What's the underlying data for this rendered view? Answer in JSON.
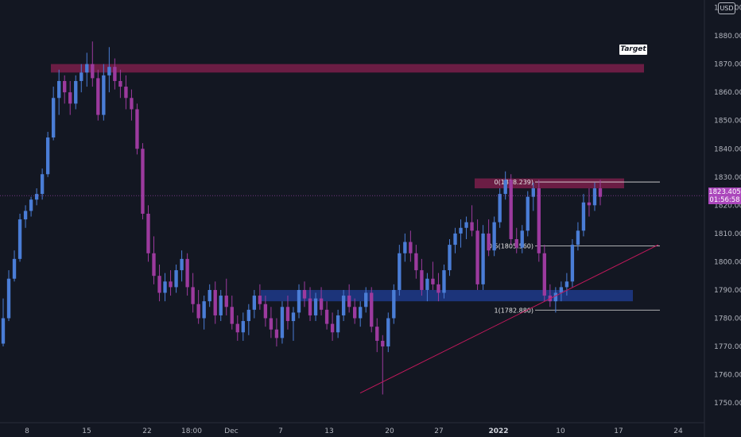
{
  "currency": "USD",
  "last_price": "1823.405",
  "countdown": "01:56:58",
  "target_label": "Target",
  "fib": [
    {
      "ratio": "0",
      "price": "1828.239",
      "label": "0(1828.239)"
    },
    {
      "ratio": "0.5",
      "price": "1805.560",
      "label": "0.5(1805.560)"
    },
    {
      "ratio": "1",
      "price": "1782.880",
      "label": "1(1782.880)"
    }
  ],
  "chart_data": {
    "type": "candlestick",
    "title": "",
    "xlabel": "",
    "ylabel": "",
    "ylim": [
      1743,
      1891
    ],
    "grid": false,
    "y_ticks": [
      "1750.000",
      "1760.000",
      "1770.000",
      "1780.000",
      "1790.000",
      "1800.000",
      "1810.000",
      "1820.000",
      "1830.000",
      "1840.000",
      "1850.000",
      "1860.000",
      "1870.000",
      "1880.000",
      "1890.000"
    ],
    "x_ticks": [
      {
        "label": "8",
        "bold": false
      },
      {
        "label": "15",
        "bold": false
      },
      {
        "label": "22",
        "bold": false
      },
      {
        "label": "18:00",
        "bold": false
      },
      {
        "label": "Dec",
        "bold": false
      },
      {
        "label": "7",
        "bold": false
      },
      {
        "label": "13",
        "bold": false
      },
      {
        "label": "20",
        "bold": false
      },
      {
        "label": "27",
        "bold": false
      },
      {
        "label": "2022",
        "bold": true
      },
      {
        "label": "10",
        "bold": false
      },
      {
        "label": "17",
        "bold": false
      },
      {
        "label": "24",
        "bold": false
      }
    ],
    "zones": [
      {
        "name": "resistance-target",
        "y_top": 1870,
        "y_bottom": 1867,
        "color": "#7b1f4a"
      },
      {
        "name": "resistance",
        "y_top": 1829.5,
        "y_bottom": 1826,
        "color": "#7b1f4a"
      },
      {
        "name": "support",
        "y_top": 1790,
        "y_bottom": 1786,
        "color": "#1e3a8a"
      }
    ],
    "trendline": {
      "from": 1753.5,
      "to": 1806,
      "color": "#c2185b"
    },
    "colors": {
      "up": "#4a7dd6",
      "down": "#9c3a9e"
    },
    "candles": [
      [
        1771,
        1787,
        1770,
        1780
      ],
      [
        1780,
        1797,
        1779,
        1794
      ],
      [
        1794,
        1804,
        1793,
        1801
      ],
      [
        1801,
        1817,
        1800,
        1815
      ],
      [
        1815,
        1820,
        1812,
        1818
      ],
      [
        1818,
        1823,
        1816,
        1822
      ],
      [
        1822,
        1826,
        1820,
        1824
      ],
      [
        1824,
        1833,
        1822,
        1831
      ],
      [
        1831,
        1846,
        1830,
        1844
      ],
      [
        1844,
        1862,
        1843,
        1858
      ],
      [
        1858,
        1868,
        1852,
        1864
      ],
      [
        1864,
        1866,
        1856,
        1860
      ],
      [
        1860,
        1864,
        1852,
        1856
      ],
      [
        1856,
        1866,
        1854,
        1864
      ],
      [
        1864,
        1870,
        1860,
        1867
      ],
      [
        1867,
        1874,
        1862,
        1870
      ],
      [
        1870,
        1878,
        1862,
        1865
      ],
      [
        1865,
        1868,
        1850,
        1852
      ],
      [
        1852,
        1870,
        1850,
        1866
      ],
      [
        1866,
        1876,
        1860,
        1869
      ],
      [
        1869,
        1872,
        1861,
        1864
      ],
      [
        1864,
        1868,
        1858,
        1862
      ],
      [
        1862,
        1866,
        1854,
        1858
      ],
      [
        1858,
        1861,
        1850,
        1854
      ],
      [
        1854,
        1856,
        1838,
        1840
      ],
      [
        1840,
        1842,
        1815,
        1817
      ],
      [
        1817,
        1820,
        1800,
        1803
      ],
      [
        1803,
        1809,
        1792,
        1795
      ],
      [
        1795,
        1799,
        1786,
        1789
      ],
      [
        1789,
        1796,
        1786,
        1793
      ],
      [
        1793,
        1797,
        1788,
        1791
      ],
      [
        1791,
        1799,
        1789,
        1797
      ],
      [
        1797,
        1804,
        1793,
        1801
      ],
      [
        1801,
        1803,
        1788,
        1791
      ],
      [
        1791,
        1796,
        1782,
        1785
      ],
      [
        1785,
        1790,
        1778,
        1780
      ],
      [
        1780,
        1788,
        1776,
        1786
      ],
      [
        1786,
        1792,
        1784,
        1790
      ],
      [
        1790,
        1793,
        1778,
        1781
      ],
      [
        1781,
        1790,
        1779,
        1788
      ],
      [
        1788,
        1794,
        1781,
        1784
      ],
      [
        1784,
        1788,
        1776,
        1778
      ],
      [
        1778,
        1781,
        1772,
        1775
      ],
      [
        1775,
        1782,
        1772,
        1779
      ],
      [
        1779,
        1785,
        1774,
        1783
      ],
      [
        1783,
        1790,
        1780,
        1788
      ],
      [
        1788,
        1792,
        1783,
        1785
      ],
      [
        1785,
        1788,
        1777,
        1780
      ],
      [
        1780,
        1784,
        1773,
        1776
      ],
      [
        1776,
        1780,
        1770,
        1773
      ],
      [
        1773,
        1786,
        1771,
        1784
      ],
      [
        1784,
        1788,
        1776,
        1779
      ],
      [
        1779,
        1784,
        1772,
        1782
      ],
      [
        1782,
        1792,
        1780,
        1790
      ],
      [
        1790,
        1793,
        1784,
        1787
      ],
      [
        1787,
        1791,
        1779,
        1781
      ],
      [
        1781,
        1789,
        1779,
        1787
      ],
      [
        1787,
        1791,
        1781,
        1783
      ],
      [
        1783,
        1786,
        1776,
        1778
      ],
      [
        1778,
        1782,
        1772,
        1775
      ],
      [
        1775,
        1783,
        1773,
        1781
      ],
      [
        1781,
        1790,
        1779,
        1788
      ],
      [
        1788,
        1792,
        1782,
        1784
      ],
      [
        1784,
        1787,
        1778,
        1780
      ],
      [
        1780,
        1786,
        1777,
        1784
      ],
      [
        1784,
        1791,
        1782,
        1789
      ],
      [
        1789,
        1791,
        1775,
        1777
      ],
      [
        1777,
        1780,
        1768,
        1772
      ],
      [
        1772,
        1774,
        1753,
        1770
      ],
      [
        1770,
        1782,
        1768,
        1780
      ],
      [
        1780,
        1792,
        1778,
        1790
      ],
      [
        1790,
        1806,
        1788,
        1803
      ],
      [
        1803,
        1810,
        1800,
        1807
      ],
      [
        1807,
        1811,
        1800,
        1803
      ],
      [
        1803,
        1806,
        1794,
        1797
      ],
      [
        1797,
        1801,
        1788,
        1790
      ],
      [
        1790,
        1796,
        1786,
        1794
      ],
      [
        1794,
        1800,
        1790,
        1792
      ],
      [
        1792,
        1796,
        1786,
        1789
      ],
      [
        1789,
        1799,
        1787,
        1797
      ],
      [
        1797,
        1808,
        1795,
        1806
      ],
      [
        1806,
        1812,
        1803,
        1810
      ],
      [
        1810,
        1815,
        1805,
        1812
      ],
      [
        1812,
        1816,
        1808,
        1814
      ],
      [
        1814,
        1820,
        1809,
        1811
      ],
      [
        1811,
        1815,
        1790,
        1792
      ],
      [
        1792,
        1813,
        1790,
        1810
      ],
      [
        1810,
        1815,
        1802,
        1804
      ],
      [
        1804,
        1816,
        1802,
        1814
      ],
      [
        1814,
        1826,
        1812,
        1824
      ],
      [
        1824,
        1832,
        1822,
        1829
      ],
      [
        1829,
        1831,
        1806,
        1808
      ],
      [
        1808,
        1812,
        1803,
        1805
      ],
      [
        1805,
        1813,
        1803,
        1811
      ],
      [
        1811,
        1825,
        1809,
        1823
      ],
      [
        1823,
        1828,
        1818,
        1826
      ],
      [
        1826,
        1829,
        1800,
        1803
      ],
      [
        1803,
        1806,
        1786,
        1788
      ],
      [
        1788,
        1792,
        1784,
        1786
      ],
      [
        1786,
        1791,
        1782,
        1789
      ],
      [
        1789,
        1793,
        1786,
        1791
      ],
      [
        1791,
        1796,
        1788,
        1793
      ],
      [
        1793,
        1808,
        1791,
        1806
      ],
      [
        1806,
        1814,
        1804,
        1811
      ],
      [
        1811,
        1824,
        1809,
        1821
      ],
      [
        1821,
        1826,
        1816,
        1820
      ],
      [
        1820,
        1828,
        1818,
        1826
      ],
      [
        1826,
        1829,
        1820,
        1823
      ]
    ]
  }
}
